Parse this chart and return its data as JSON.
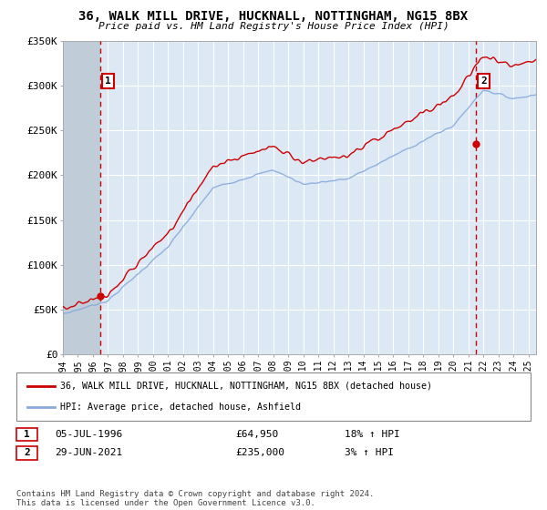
{
  "title": "36, WALK MILL DRIVE, HUCKNALL, NOTTINGHAM, NG15 8BX",
  "subtitle": "Price paid vs. HM Land Registry's House Price Index (HPI)",
  "legend_line1": "36, WALK MILL DRIVE, HUCKNALL, NOTTINGHAM, NG15 8BX (detached house)",
  "legend_line2": "HPI: Average price, detached house, Ashfield",
  "table_row1": [
    "1",
    "05-JUL-1996",
    "£64,950",
    "18% ↑ HPI"
  ],
  "table_row2": [
    "2",
    "29-JUN-2021",
    "£235,000",
    "3% ↑ HPI"
  ],
  "footer": "Contains HM Land Registry data © Crown copyright and database right 2024.\nThis data is licensed under the Open Government Licence v3.0.",
  "ylim": [
    0,
    350000
  ],
  "yticks": [
    0,
    50000,
    100000,
    150000,
    200000,
    250000,
    300000,
    350000
  ],
  "ytick_labels": [
    "£0",
    "£50K",
    "£100K",
    "£150K",
    "£200K",
    "£250K",
    "£300K",
    "£350K"
  ],
  "sale1_year": 1996.5,
  "sale1_price": 64950,
  "sale2_year": 2021.5,
  "sale2_price": 235000,
  "line_color_red": "#cc0000",
  "line_color_blue": "#88aadd",
  "bg_plot_color": "#dce9f5",
  "hatch_color": "#c0ccd8",
  "grid_color": "#ffffff",
  "vline_color": "#cc0000",
  "anno_box_color": "#cc0000"
}
